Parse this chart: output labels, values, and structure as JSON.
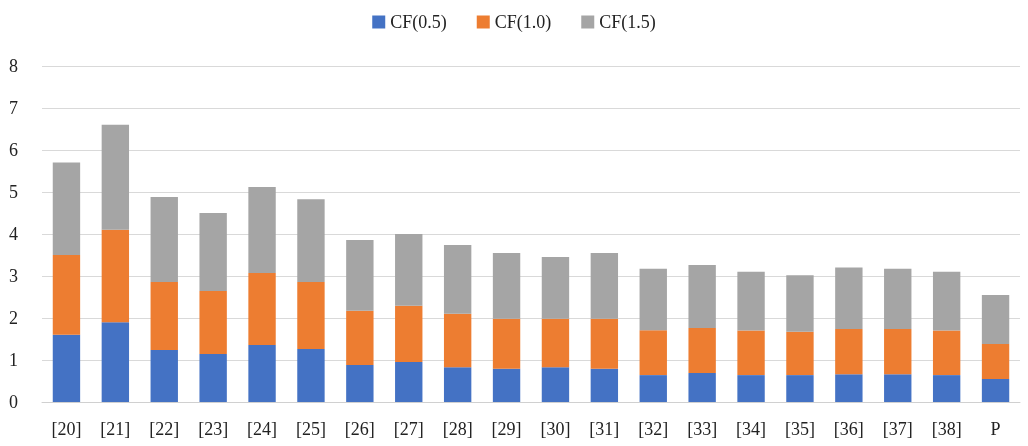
{
  "chart_data": {
    "type": "bar",
    "stacked": true,
    "categories": [
      "[20]",
      "[21]",
      "[22]",
      "[23]",
      "[24]",
      "[25]",
      "[26]",
      "[27]",
      "[28]",
      "[29]",
      "[30]",
      "[31]",
      "[32]",
      "[33]",
      "[34]",
      "[35]",
      "[36]",
      "[37]",
      "[38]",
      "P"
    ],
    "series": [
      {
        "name": "CF(0.5)",
        "color": "#4472c4",
        "values": [
          1.6,
          1.9,
          1.24,
          1.14,
          1.36,
          1.26,
          0.88,
          0.95,
          0.83,
          0.79,
          0.83,
          0.79,
          0.64,
          0.69,
          0.64,
          0.64,
          0.66,
          0.66,
          0.64,
          0.55
        ]
      },
      {
        "name": "CF(1.0)",
        "color": "#ed7d31",
        "values": [
          1.9,
          2.2,
          1.62,
          1.5,
          1.71,
          1.6,
          1.29,
          1.34,
          1.27,
          1.19,
          1.15,
          1.19,
          1.07,
          1.07,
          1.06,
          1.03,
          1.08,
          1.08,
          1.06,
          0.83
        ]
      },
      {
        "name": "CF(1.5)",
        "color": "#a5a5a5",
        "values": [
          2.2,
          2.5,
          2.02,
          1.86,
          2.05,
          1.97,
          1.69,
          1.71,
          1.64,
          1.57,
          1.47,
          1.57,
          1.46,
          1.5,
          1.4,
          1.35,
          1.46,
          1.43,
          1.4,
          1.17
        ]
      }
    ],
    "ylim": [
      0,
      8
    ],
    "yticks": [
      0,
      1,
      2,
      3,
      4,
      5,
      6,
      7,
      8
    ],
    "grid": "y",
    "legend": "top"
  }
}
